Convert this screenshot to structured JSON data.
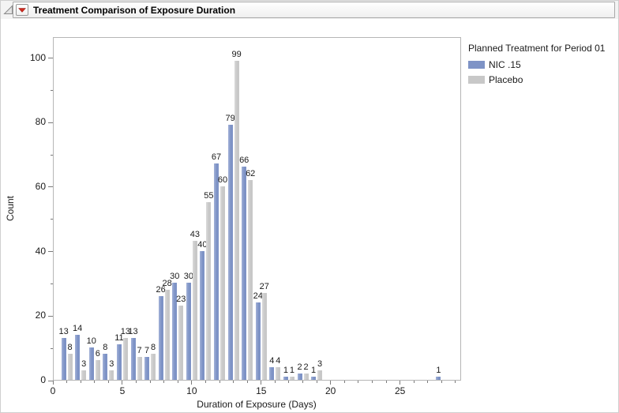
{
  "header": {
    "title": "Treatment Comparison of Exposure Duration"
  },
  "icons": {
    "disclosure": "open-disclosure-triangle-icon",
    "menu": "red-triangle-menu-icon"
  },
  "colors": {
    "nic_blue": "#7E93C6",
    "placebo_gray": "#C8C8C8",
    "frame": "#B6B6B6",
    "red_triangle": "#CE2B20"
  },
  "chart_data": {
    "type": "bar",
    "title": "Treatment Comparison of Exposure Duration",
    "xlabel": "Duration of Exposure (Days)",
    "ylabel": "Count",
    "categories": [
      1,
      2,
      3,
      4,
      5,
      6,
      7,
      8,
      9,
      10,
      11,
      12,
      13,
      14,
      15,
      16,
      17,
      18,
      19,
      28
    ],
    "series": [
      {
        "name": "NIC .15",
        "color": "#7E93C6",
        "values": [
          13,
          14,
          10,
          8,
          11,
          13,
          7,
          26,
          30,
          30,
          40,
          67,
          79,
          66,
          24,
          4,
          1,
          2,
          1,
          1
        ]
      },
      {
        "name": "Placebo",
        "color": "#C8C8C8",
        "values": [
          8,
          3,
          6,
          3,
          13,
          7,
          8,
          28,
          23,
          43,
          55,
          60,
          99,
          62,
          27,
          4,
          1,
          2,
          3,
          0
        ]
      }
    ],
    "legend_title": "Planned Treatment for Period 01",
    "legend_position": "right",
    "bar_value_labels": true,
    "grid": false,
    "xlim": [
      0,
      29.4
    ],
    "ylim": [
      0,
      106.5
    ],
    "x_major_ticks": [
      0,
      5,
      10,
      15,
      20,
      25
    ],
    "x_minor_step": 1,
    "y_major_ticks": [
      0,
      20,
      40,
      60,
      80,
      100
    ],
    "y_minor_step": 10
  }
}
